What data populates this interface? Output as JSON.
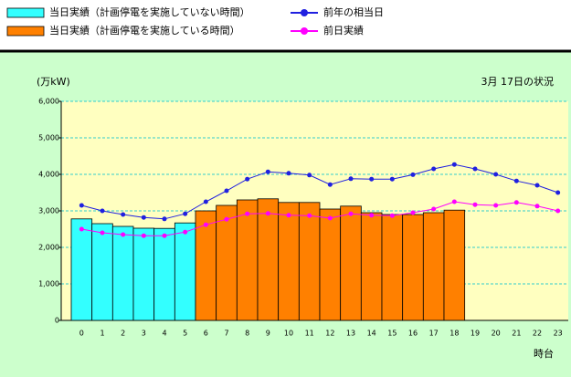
{
  "chart_data": {
    "type": "bar_line",
    "title": "3月 17日の状況",
    "y_label": "(万kW)",
    "x_label": "時台",
    "categories": [
      "0",
      "1",
      "2",
      "3",
      "4",
      "5",
      "6",
      "7",
      "8",
      "9",
      "10",
      "11",
      "12",
      "13",
      "14",
      "15",
      "16",
      "17",
      "18",
      "19",
      "20",
      "21",
      "22",
      "23"
    ],
    "series": [
      {
        "name": "当日実績（計画停電を実施していない時間）",
        "type": "bar",
        "color": "#33ffff",
        "values": [
          2780,
          2650,
          2575,
          2525,
          2520,
          2670,
          null,
          null,
          null,
          null,
          null,
          null,
          null,
          null,
          null,
          null,
          null,
          null,
          null,
          null,
          null,
          null,
          null,
          null
        ]
      },
      {
        "name": "当日実績（計画停電を実施している時間）",
        "type": "bar",
        "color": "#ff8000",
        "values": [
          null,
          null,
          null,
          null,
          null,
          null,
          3000,
          3150,
          3300,
          3330,
          3230,
          3230,
          3050,
          3130,
          2950,
          2900,
          2900,
          2950,
          3020,
          null,
          null,
          null,
          null,
          null
        ]
      },
      {
        "name": "前年の相当日",
        "type": "line",
        "color": "#2020e0",
        "values": [
          3150,
          3000,
          2900,
          2820,
          2780,
          2920,
          3250,
          3550,
          3870,
          4070,
          4030,
          3980,
          3720,
          3880,
          3870,
          3870,
          3990,
          4150,
          4270,
          4150,
          4000,
          3820,
          3700,
          3500
        ]
      },
      {
        "name": "前日実績",
        "type": "line",
        "color": "#ff00ff",
        "values": [
          2500,
          2400,
          2350,
          2320,
          2320,
          2420,
          2620,
          2770,
          2920,
          2930,
          2880,
          2870,
          2800,
          2920,
          2880,
          2870,
          2950,
          3050,
          3250,
          3170,
          3150,
          3230,
          3130,
          3000
        ]
      }
    ],
    "ylim": [
      0,
      6000
    ],
    "yticks": [
      0,
      {
        "value": 1000,
        "label": "1,000"
      },
      {
        "value": 2000,
        "label": "2,000"
      },
      {
        "value": 3000,
        "label": "3,000"
      },
      {
        "value": 4000,
        "label": "4,000"
      },
      {
        "value": 5000,
        "label": "5,000"
      },
      {
        "value": 6000,
        "label": "6,000"
      }
    ],
    "grid": true
  }
}
